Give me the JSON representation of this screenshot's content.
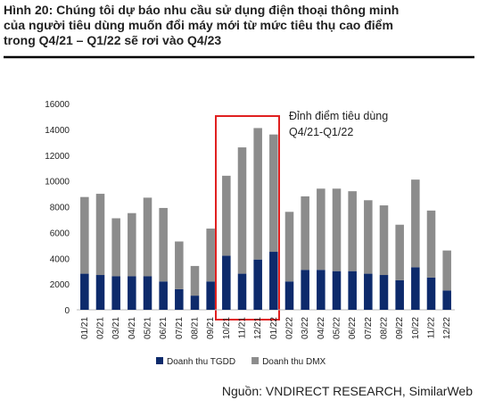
{
  "header": {
    "title_lines": [
      "Hình 20: Chúng tôi dự báo nhu cầu sử dụng điện thoại thông minh",
      "của người tiêu dùng muốn đổi máy mới từ mức tiêu thụ cao điểm",
      "trong Q4/21 – Q1/22 sẽ rơi vào Q4/23"
    ]
  },
  "chart_data": {
    "type": "stacked_bar",
    "categories": [
      "01/21",
      "02/21",
      "03/21",
      "04/21",
      "05/21",
      "06/21",
      "07/21",
      "08/21",
      "09/21",
      "10/21",
      "11/21",
      "12/21",
      "01/22",
      "02/22",
      "03/22",
      "04/22",
      "05/22",
      "06/22",
      "07/22",
      "08/22",
      "09/22",
      "10/22",
      "11/22",
      "12/22"
    ],
    "series": [
      {
        "name": "Doanh thu TGDD",
        "color": "#0d2a6b",
        "values": [
          2800,
          2700,
          2600,
          2600,
          2600,
          2200,
          1600,
          1100,
          2200,
          4200,
          2800,
          3900,
          4500,
          2200,
          3100,
          3100,
          3000,
          3000,
          2800,
          2700,
          2300,
          3300,
          2500,
          1500
        ]
      },
      {
        "name": "Doanh thu DMX",
        "color": "#8c8c8c",
        "values": [
          5950,
          6300,
          4500,
          4900,
          6100,
          5700,
          3700,
          2300,
          4100,
          6200,
          9800,
          10200,
          9100,
          5400,
          5700,
          6300,
          6400,
          6200,
          5700,
          5400,
          4300,
          6800,
          5200,
          3100
        ]
      }
    ],
    "ylim": [
      0,
      16000
    ],
    "yticks": [
      0,
      2000,
      4000,
      6000,
      8000,
      10000,
      12000,
      14000,
      16000
    ],
    "grid": false,
    "annotation_lines": [
      "Đỉnh điểm tiêu dùng",
      "Q4/21-Q1/22"
    ],
    "legend": "bottom"
  },
  "footer": {
    "source": "Nguồn: VNDIRECT RESEARCH, SimilarWeb"
  }
}
